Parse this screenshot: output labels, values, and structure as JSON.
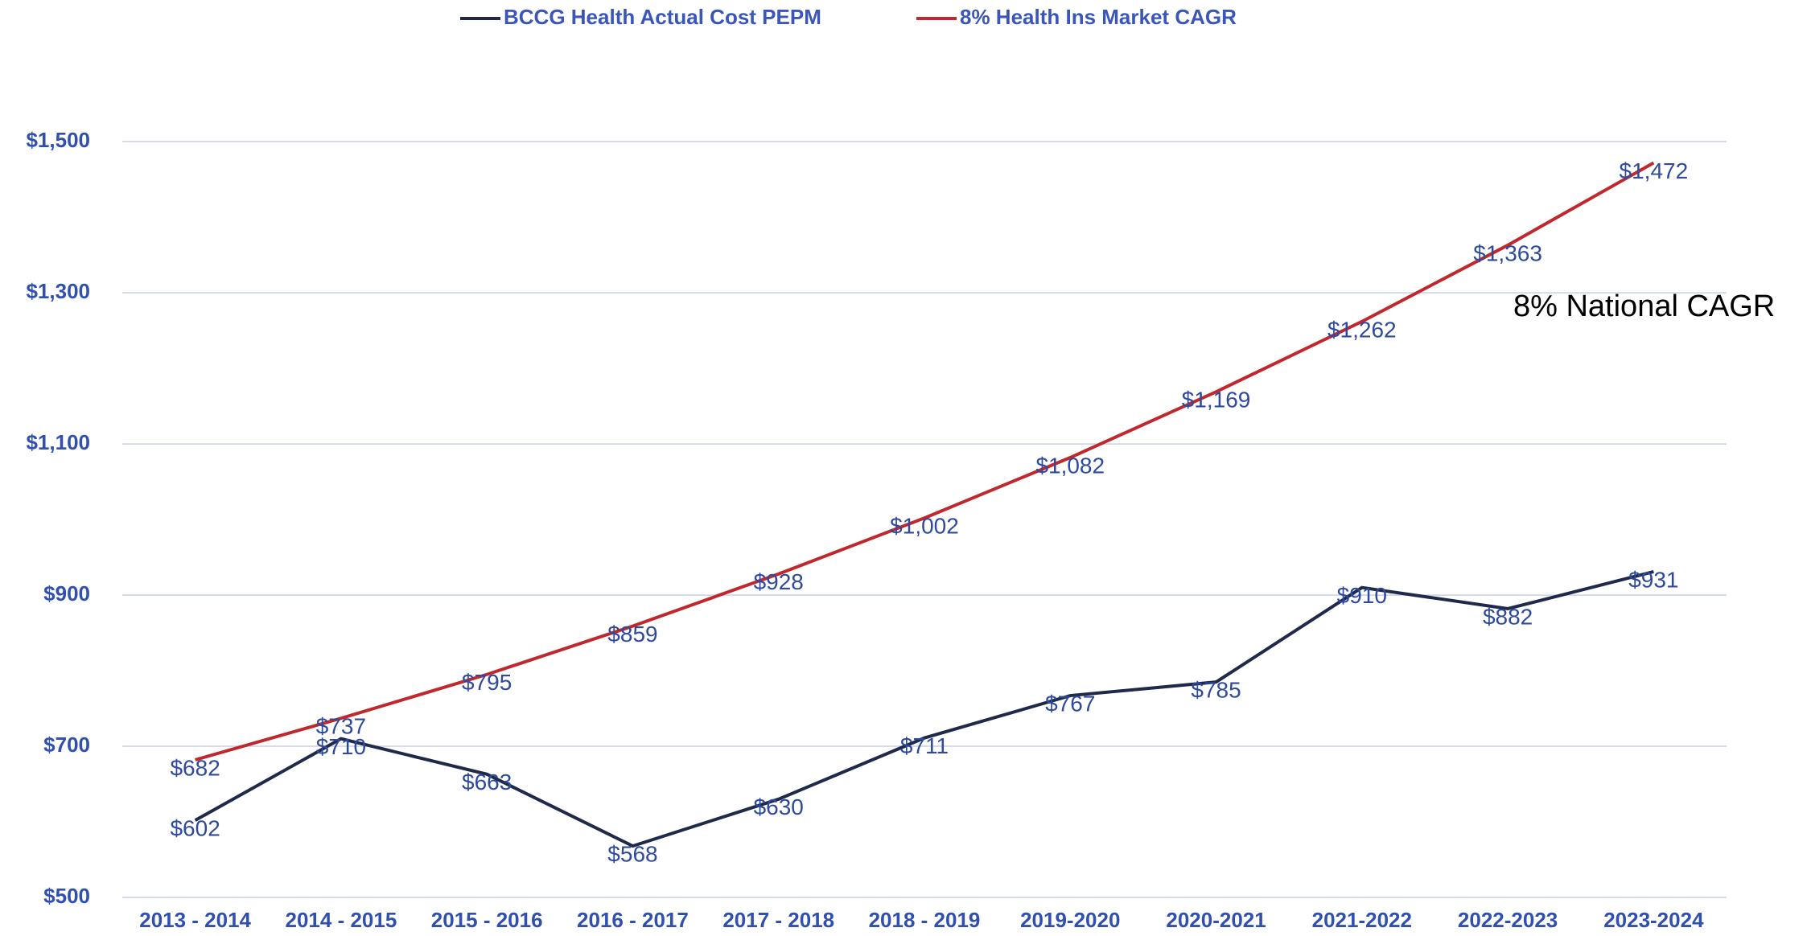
{
  "chart_data": {
    "type": "line",
    "categories": [
      "2013 - 2014",
      "2014 - 2015",
      "2015 - 2016",
      "2016 - 2017",
      "2017 - 2018",
      "2018 - 2019",
      "2019-2020",
      "2020-2021",
      "2021-2022",
      "2022-2023",
      "2023-2024"
    ],
    "series": [
      {
        "name": "BCCG Health Actual Cost PEPM",
        "color": "#1f2a4a",
        "values": [
          602,
          710,
          663,
          568,
          630,
          711,
          767,
          785,
          910,
          882,
          931
        ],
        "value_labels": [
          "$602",
          "$710",
          "$663",
          "$568",
          "$630",
          "$711",
          "$767",
          "$785",
          "$910",
          "$882",
          "$931"
        ]
      },
      {
        "name": "8% Health Ins Market CAGR",
        "color": "#c0282d",
        "values": [
          682,
          737,
          795,
          859,
          928,
          1002,
          1082,
          1169,
          1262,
          1363,
          1472
        ],
        "value_labels": [
          "$682",
          "$737",
          "$795",
          "$859",
          "$928",
          "$1,002",
          "$1,082",
          "$1,169",
          "$1,262",
          "$1,363",
          "$1,472"
        ]
      }
    ],
    "annotation": "8% National CAGR",
    "ylim": [
      500,
      1580
    ],
    "yticks": [
      {
        "value": 500,
        "label": "$500"
      },
      {
        "value": 700,
        "label": "$700"
      },
      {
        "value": 900,
        "label": "$900"
      },
      {
        "value": 1100,
        "label": "$1,100"
      },
      {
        "value": 1300,
        "label": "$1,300"
      },
      {
        "value": 1500,
        "label": "$1,500"
      }
    ],
    "grid": true
  }
}
